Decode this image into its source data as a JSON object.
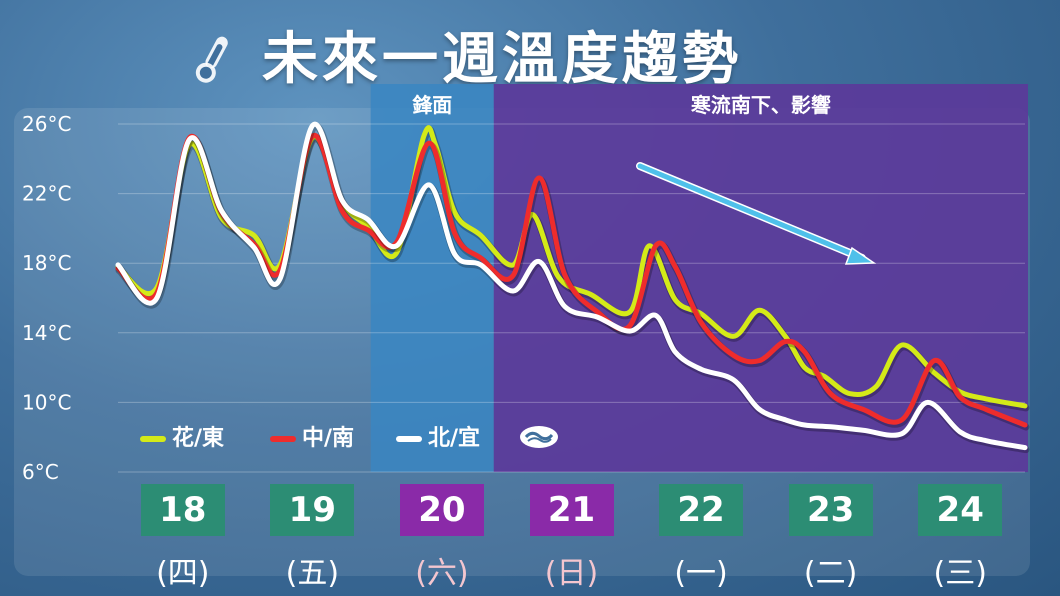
{
  "title": "未來一週溫度趨勢",
  "title_icon": "thermometer-icon",
  "zone_labels": {
    "front": "鋒面",
    "cold": "寒流南下、影響"
  },
  "colors": {
    "hualien": "#d4ea18",
    "central_south": "#ee2c2c",
    "north_yilan": "#ffffff",
    "front_band": "#3a86c2",
    "cold_band": "#5b3a9a",
    "trend_arrow": "#4fc0ea",
    "day_green": "#2c8d74",
    "day_purple": "#8a2aa8"
  },
  "legend": {
    "hualien": "花/東",
    "central_south": "中/南",
    "north_yilan": "北/宜",
    "logo": "cwa-logo-icon"
  },
  "days": [
    {
      "date": "18",
      "weekday": "(四)",
      "style": "green"
    },
    {
      "date": "19",
      "weekday": "(五)",
      "style": "green"
    },
    {
      "date": "20",
      "weekday": "(六)",
      "style": "purple"
    },
    {
      "date": "21",
      "weekday": "(日)",
      "style": "purple"
    },
    {
      "date": "22",
      "weekday": "(一)",
      "style": "green"
    },
    {
      "date": "23",
      "weekday": "(二)",
      "style": "green"
    },
    {
      "date": "24",
      "weekday": "(三)",
      "style": "green"
    }
  ],
  "chart_data": {
    "type": "line",
    "title": "未來一週溫度趨勢",
    "ylabel": "",
    "xlabel": "",
    "y_ticks": [
      "26°C",
      "22°C",
      "18°C",
      "14°C",
      "10°C",
      "6°C"
    ],
    "y_tick_values": [
      26,
      22,
      18,
      14,
      10,
      6
    ],
    "ylim": [
      6,
      26
    ],
    "x_unit": "day index (0 = start of 18th, 7 = end of 24th)",
    "x_range": [
      0,
      7
    ],
    "front_period": [
      1.95,
      2.9
    ],
    "cold_period": [
      2.9,
      7
    ],
    "grid": true,
    "legend_position": "bottom-left",
    "series": [
      {
        "name": "花/東",
        "key": "hualien",
        "x": [
          0.0,
          0.3,
          0.55,
          0.8,
          1.05,
          1.25,
          1.5,
          1.73,
          1.93,
          2.15,
          2.36,
          2.45,
          2.6,
          2.8,
          3.05,
          3.2,
          3.4,
          3.65,
          3.95,
          4.1,
          4.3,
          4.5,
          4.75,
          4.95,
          5.15,
          5.3,
          5.45,
          5.65,
          5.85,
          6.05,
          6.3,
          6.5,
          6.7,
          7.0
        ],
        "y": [
          17.8,
          16.6,
          24.8,
          20.6,
          19.6,
          17.9,
          25.2,
          21.5,
          20.1,
          18.6,
          25.3,
          24.8,
          20.9,
          19.6,
          17.9,
          20.8,
          17.2,
          16.2,
          15.2,
          19.0,
          15.9,
          15.1,
          13.8,
          15.3,
          13.8,
          12.0,
          11.5,
          10.5,
          10.9,
          13.3,
          11.7,
          10.6,
          10.2,
          9.8
        ]
      },
      {
        "name": "中/南",
        "key": "central_south",
        "x": [
          0.0,
          0.3,
          0.55,
          0.8,
          1.05,
          1.25,
          1.5,
          1.73,
          1.93,
          2.15,
          2.4,
          2.6,
          2.8,
          3.05,
          3.25,
          3.45,
          3.7,
          3.95,
          4.15,
          4.3,
          4.5,
          4.75,
          4.95,
          5.15,
          5.3,
          5.5,
          5.75,
          6.05,
          6.3,
          6.5,
          6.7,
          7.0
        ],
        "y": [
          17.7,
          16.3,
          25.2,
          20.9,
          19.1,
          17.6,
          25.3,
          21.0,
          19.9,
          19.2,
          24.9,
          19.7,
          18.3,
          17.3,
          22.9,
          17.3,
          15.2,
          14.4,
          19.0,
          17.8,
          14.6,
          12.7,
          12.4,
          13.5,
          12.9,
          10.5,
          9.6,
          9.0,
          12.4,
          10.3,
          9.6,
          8.7
        ]
      },
      {
        "name": "北/宜",
        "key": "north_yilan",
        "x": [
          0.0,
          0.3,
          0.55,
          0.8,
          1.05,
          1.25,
          1.5,
          1.73,
          1.93,
          2.15,
          2.4,
          2.6,
          2.8,
          3.05,
          3.25,
          3.45,
          3.7,
          3.95,
          4.15,
          4.3,
          4.5,
          4.75,
          4.95,
          5.15,
          5.3,
          5.5,
          5.75,
          6.05,
          6.25,
          6.5,
          6.7,
          7.0
        ],
        "y": [
          17.9,
          16.0,
          25.1,
          21.0,
          18.9,
          17.1,
          25.9,
          21.6,
          20.5,
          19.0,
          22.5,
          18.5,
          17.9,
          16.4,
          18.1,
          15.5,
          14.9,
          14.1,
          15.0,
          12.9,
          11.9,
          11.3,
          9.6,
          9.0,
          8.7,
          8.6,
          8.4,
          8.2,
          10.0,
          8.3,
          7.8,
          7.4
        ]
      }
    ]
  }
}
